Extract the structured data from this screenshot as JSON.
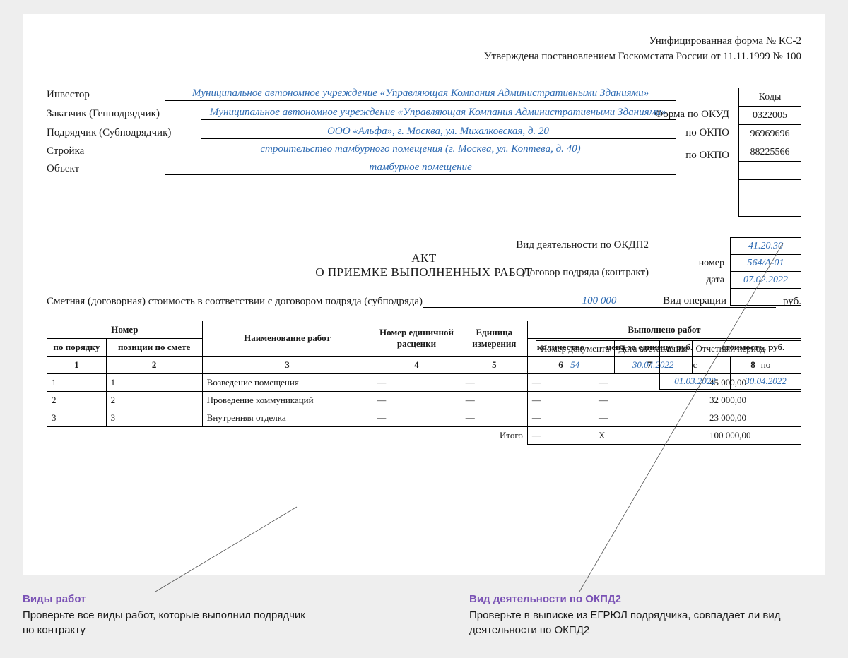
{
  "header": {
    "line1": "Унифицированная форма № КС-2",
    "line2": "Утверждена постановлением Госкомстата России от 11.11.1999 № 100"
  },
  "codes": {
    "title": "Коды",
    "okud_label": "Форма по ОКУД",
    "okud": "0322005",
    "okpo_inv_label": "по ОКПО",
    "okpo_inv": "96969696",
    "okpo_cust_label": "по ОКПО",
    "okpo_cust": "88225566"
  },
  "fields": {
    "investor_label": "Инвестор",
    "investor": "Муниципальное автономное учреждение «Управляющая Компания Административными Зданиями»",
    "customer_label": "Заказчик (Генподрядчик)",
    "customer": "Муниципальное автономное учреждение «Управляющая Компания Административными Зданиями»",
    "contractor_label": "Подрядчик (Субподрядчик)",
    "contractor": "ООО «Альфа», г. Москва, ул. Михалковская, д. 20",
    "build_label": "Стройка",
    "build": "строительство тамбурного помещения (г. Москва, ул. Коптева, д. 40)",
    "object_label": "Объект",
    "object": "тамбурное помещение"
  },
  "subcodes": {
    "okdp_label": "Вид деятельности по ОКДП2",
    "okdp": "41.20.30",
    "contract_label": "Договор подряда (контракт)",
    "num_label": "номер",
    "num": "564/А-01",
    "date_label": "дата",
    "date": "07.02.2022",
    "op_label": "Вид операции"
  },
  "title": {
    "akt": "АКТ",
    "sub": "О ПРИЕМКЕ ВЫПОЛНЕННЫХ РАБОТ"
  },
  "docinfo": {
    "numdoc_label": "Номер документа",
    "date_label": "Дата составления",
    "numdoc": "54",
    "date": "30.04.2022"
  },
  "period": {
    "header": "Отчетный период",
    "from_label": "с",
    "to_label": "по",
    "from": "01.03.2022",
    "to": "30.04.2022"
  },
  "estimate": {
    "label": "Сметная (договорная) стоимость в соответствии с договором подряда (субподряда)",
    "value": "100 000",
    "unit": "руб."
  },
  "table": {
    "headers": {
      "number_group": "Номер",
      "by_order": "по порядку",
      "by_smeta": "позиции по смете",
      "work_name": "Наименование работ",
      "unit_price_num": "Номер единичной расценки",
      "unit_measure": "Единица измерения",
      "done_group": "Выполнено работ",
      "qty": "количество",
      "unit_price": "цена за единицу, руб.",
      "cost": "стоимость, руб."
    },
    "colnums": [
      "1",
      "2",
      "3",
      "4",
      "5",
      "6",
      "7",
      "8"
    ],
    "rows": [
      {
        "n": "1",
        "pos": "1",
        "name": "Возведение помещения",
        "num": "—",
        "unit": "—",
        "qty": "—",
        "price": "—",
        "cost": "45 000,00"
      },
      {
        "n": "2",
        "pos": "2",
        "name": "Проведение коммуникаций",
        "num": "—",
        "unit": "—",
        "qty": "—",
        "price": "—",
        "cost": "32 000,00"
      },
      {
        "n": "3",
        "pos": "3",
        "name": "Внутренняя отделка",
        "num": "—",
        "unit": "—",
        "qty": "—",
        "price": "—",
        "cost": "23 000,00"
      }
    ],
    "total_label": "Итого",
    "total": {
      "qty": "—",
      "price": "X",
      "cost": "100 000,00"
    }
  },
  "callouts": {
    "left_title": "Виды работ",
    "left_text": "Проверьте все виды работ, которые выполнил подрядчик по контракту",
    "right_title": "Вид деятельности по ОКПД2",
    "right_text": "Проверьте в выписке из ЕГРЮЛ подрядчика, совпадает ли вид деятельности по ОКПД2"
  },
  "colors": {
    "blue": "#2e6bb3",
    "purple": "#7a52b5",
    "bg": "#eeeeee",
    "line": "#555555"
  }
}
